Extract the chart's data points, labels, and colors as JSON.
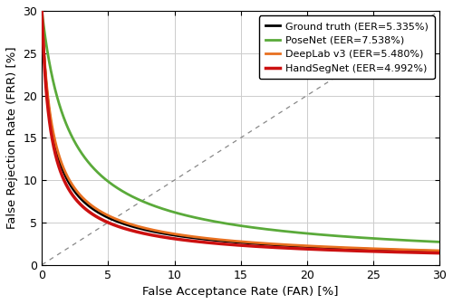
{
  "xlabel": "False Acceptance Rate (FAR) [%]",
  "ylabel": "False Rejection Rate (FRR) [%]",
  "xlim": [
    0,
    30
  ],
  "ylim": [
    0,
    30
  ],
  "xticks": [
    0,
    5,
    10,
    15,
    20,
    25,
    30
  ],
  "yticks": [
    0,
    5,
    10,
    15,
    20,
    25,
    30
  ],
  "legend": [
    {
      "label": "Ground truth (EER=5.335%)",
      "color": "#000000",
      "lw": 2.0
    },
    {
      "label": "PoseNet (EER=7.538%)",
      "color": "#5aaa3a",
      "lw": 2.0
    },
    {
      "label": "DeepLab v3 (EER=5.480%)",
      "color": "#e87020",
      "lw": 2.0
    },
    {
      "label": "HandSegNet (EER=4.992%)",
      "color": "#cc1010",
      "lw": 2.5
    }
  ],
  "curves": [
    {
      "name": "ground_truth",
      "eer": 5.335,
      "A": 30.0,
      "B": 0.55,
      "C": 1.35,
      "color": "#000000",
      "lw": 2.0,
      "zorder": 4
    },
    {
      "name": "posenet",
      "eer": 7.538,
      "A": 30.0,
      "B": 1.8,
      "C": 1.1,
      "color": "#5aaa3a",
      "lw": 2.0,
      "zorder": 3
    },
    {
      "name": "deeplab",
      "eer": 5.48,
      "A": 30.0,
      "B": 0.6,
      "C": 1.35,
      "color": "#e87020",
      "lw": 2.0,
      "zorder": 5
    },
    {
      "name": "handsegnet",
      "eer": 4.992,
      "A": 30.0,
      "B": 0.5,
      "C": 1.38,
      "color": "#cc1010",
      "lw": 2.5,
      "zorder": 6
    }
  ],
  "diagonal_color": "#888888",
  "grid_color": "#cccccc",
  "figsize": [
    5.0,
    3.36
  ],
  "dpi": 100
}
